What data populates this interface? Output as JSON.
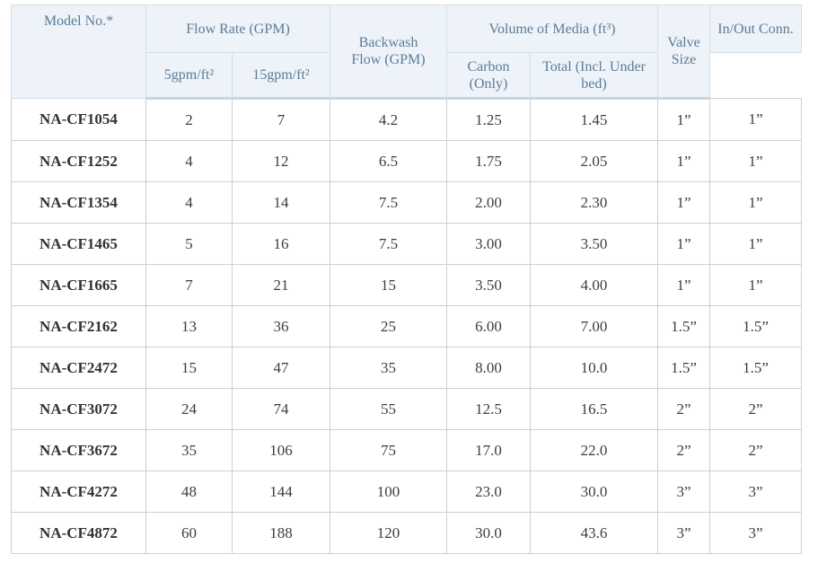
{
  "headers": {
    "model": "Model No.*",
    "flow_rate": "Flow Rate (GPM)",
    "flow_5": "5gpm/ft²",
    "flow_15": "15gpm/ft²",
    "backwash": "Backwash Flow (GPM)",
    "volume": "Volume of Media (ft³)",
    "carbon": "Carbon (Only)",
    "total": "Total (Incl. Under bed)",
    "valve": "Valve Size",
    "inout": "In/Out Conn."
  },
  "colors": {
    "header_bg": "#edf3f8",
    "header_text": "#5d7b96"
  },
  "rows": [
    [
      "NA-CF1054",
      "2",
      "7",
      "4.2",
      "1.25",
      "1.45",
      "1”",
      "1”"
    ],
    [
      "NA-CF1252",
      "4",
      "12",
      "6.5",
      "1.75",
      "2.05",
      "1”",
      "1”"
    ],
    [
      "NA-CF1354",
      "4",
      "14",
      "7.5",
      "2.00",
      "2.30",
      "1”",
      "1”"
    ],
    [
      "NA-CF1465",
      "5",
      "16",
      "7.5",
      "3.00",
      "3.50",
      "1”",
      "1”"
    ],
    [
      "NA-CF1665",
      "7",
      "21",
      "15",
      "3.50",
      "4.00",
      "1”",
      "1”"
    ],
    [
      "NA-CF2162",
      "13",
      "36",
      "25",
      "6.00",
      "7.00",
      "1.5”",
      "1.5”"
    ],
    [
      "NA-CF2472",
      "15",
      "47",
      "35",
      "8.00",
      "10.0",
      "1.5”",
      "1.5”"
    ],
    [
      "NA-CF3072",
      "24",
      "74",
      "55",
      "12.5",
      "16.5",
      "2”",
      "2”"
    ],
    [
      "NA-CF3672",
      "35",
      "106",
      "75",
      "17.0",
      "22.0",
      "2”",
      "2”"
    ],
    [
      "NA-CF4272",
      "48",
      "144",
      "100",
      "23.0",
      "30.0",
      "3”",
      "3”"
    ],
    [
      "NA-CF4872",
      "60",
      "188",
      "120",
      "30.0",
      "43.6",
      "3”",
      "3”"
    ]
  ]
}
